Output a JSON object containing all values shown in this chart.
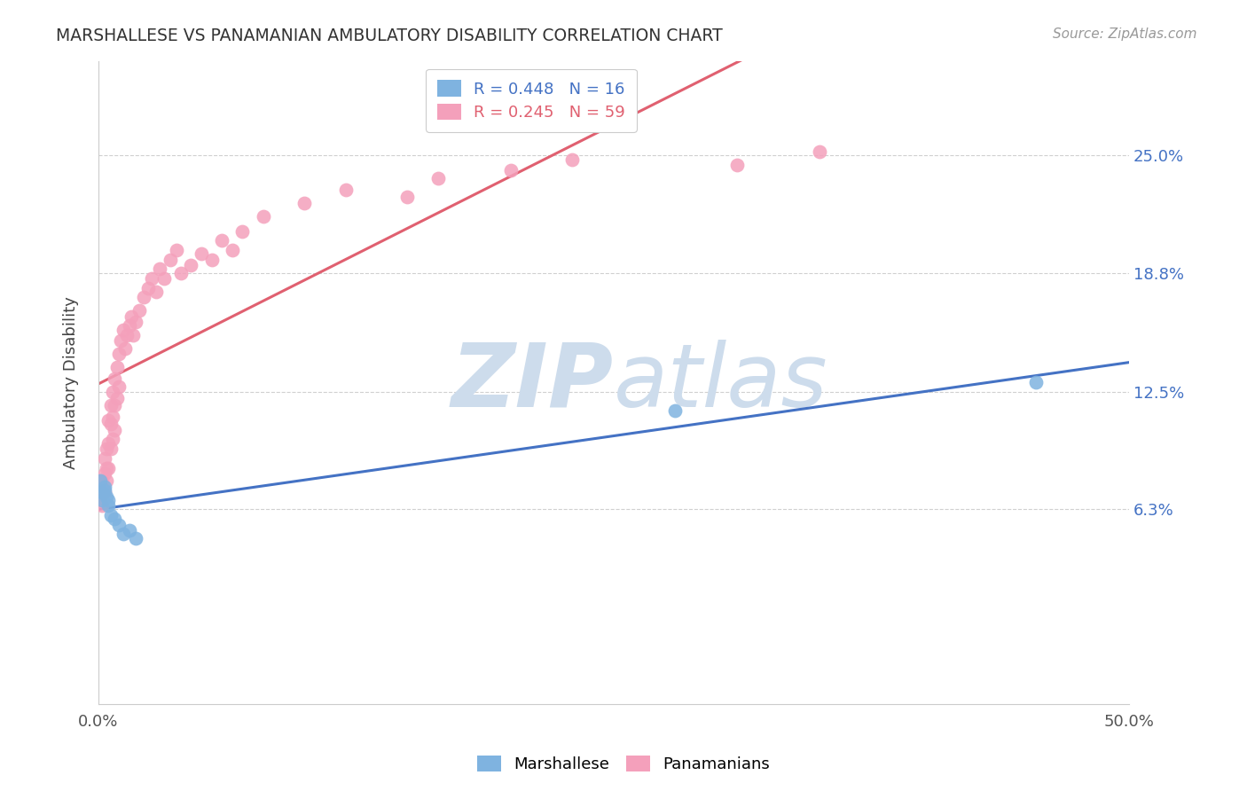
{
  "title": "MARSHALLESE VS PANAMANIAN AMBULATORY DISABILITY CORRELATION CHART",
  "source": "Source: ZipAtlas.com",
  "ylabel": "Ambulatory Disability",
  "yticks": [
    "6.3%",
    "12.5%",
    "18.8%",
    "25.0%"
  ],
  "ytick_vals": [
    0.063,
    0.125,
    0.188,
    0.25
  ],
  "xlim": [
    0.0,
    0.5
  ],
  "ylim": [
    -0.04,
    0.3
  ],
  "legend_blue_r": "R = 0.448",
  "legend_blue_n": "N = 16",
  "legend_pink_r": "R = 0.245",
  "legend_pink_n": "N = 59",
  "legend_label_blue": "Marshallese",
  "legend_label_pink": "Panamanians",
  "blue_color": "#7fb3e0",
  "pink_color": "#f4a0bb",
  "line_blue_color": "#4472c4",
  "line_pink_color": "#e06070",
  "watermark_color": "#cddcec",
  "marshallese_x": [
    0.001,
    0.002,
    0.002,
    0.003,
    0.003,
    0.004,
    0.005,
    0.005,
    0.006,
    0.008,
    0.01,
    0.012,
    0.015,
    0.018,
    0.28,
    0.455
  ],
  "marshallese_y": [
    0.078,
    0.072,
    0.068,
    0.073,
    0.075,
    0.07,
    0.065,
    0.068,
    0.06,
    0.058,
    0.055,
    0.05,
    0.052,
    0.048,
    0.115,
    0.13
  ],
  "panamanian_x": [
    0.001,
    0.001,
    0.002,
    0.002,
    0.003,
    0.003,
    0.003,
    0.004,
    0.004,
    0.004,
    0.005,
    0.005,
    0.005,
    0.006,
    0.006,
    0.006,
    0.007,
    0.007,
    0.007,
    0.008,
    0.008,
    0.008,
    0.009,
    0.009,
    0.01,
    0.01,
    0.011,
    0.012,
    0.013,
    0.014,
    0.015,
    0.016,
    0.017,
    0.018,
    0.02,
    0.022,
    0.024,
    0.026,
    0.028,
    0.03,
    0.032,
    0.035,
    0.038,
    0.04,
    0.045,
    0.05,
    0.055,
    0.06,
    0.065,
    0.07,
    0.08,
    0.1,
    0.12,
    0.15,
    0.165,
    0.2,
    0.23,
    0.31,
    0.35
  ],
  "panamanian_y": [
    0.075,
    0.068,
    0.078,
    0.065,
    0.09,
    0.082,
    0.072,
    0.095,
    0.085,
    0.078,
    0.11,
    0.098,
    0.085,
    0.118,
    0.108,
    0.095,
    0.125,
    0.112,
    0.1,
    0.132,
    0.118,
    0.105,
    0.138,
    0.122,
    0.145,
    0.128,
    0.152,
    0.158,
    0.148,
    0.155,
    0.16,
    0.165,
    0.155,
    0.162,
    0.168,
    0.175,
    0.18,
    0.185,
    0.178,
    0.19,
    0.185,
    0.195,
    0.2,
    0.188,
    0.192,
    0.198,
    0.195,
    0.205,
    0.2,
    0.21,
    0.218,
    0.225,
    0.232,
    0.228,
    0.238,
    0.242,
    0.248,
    0.245,
    0.252
  ]
}
